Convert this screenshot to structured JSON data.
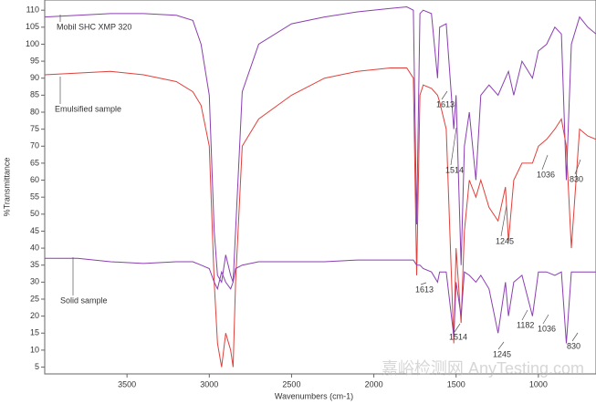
{
  "chart_data": {
    "type": "line",
    "xlabel": "Wavenumbers (cm-1)",
    "ylabel": "%Transmittance",
    "x": [
      4000,
      3800,
      3600,
      3400,
      3200,
      3100,
      3050,
      3000,
      2970,
      2950,
      2925,
      2900,
      2870,
      2855,
      2840,
      2800,
      2700,
      2500,
      2300,
      2100,
      1900,
      1800,
      1760,
      1740,
      1720,
      1700,
      1650,
      1613,
      1600,
      1560,
      1514,
      1500,
      1470,
      1450,
      1420,
      1380,
      1350,
      1300,
      1245,
      1200,
      1182,
      1150,
      1100,
      1036,
      1000,
      950,
      900,
      860,
      830,
      800,
      750,
      700,
      650
    ],
    "series": [
      {
        "name": "Mobil SHC XMP 320",
        "color": "#8a3fb0",
        "values": [
          108,
          108.5,
          109,
          109,
          108.5,
          107,
          100,
          85,
          45,
          32,
          30,
          38,
          32,
          30,
          45,
          86,
          100,
          106,
          108,
          109.5,
          110.5,
          111,
          110,
          47,
          109,
          110,
          109,
          90,
          105,
          106,
          75,
          85,
          35,
          70,
          80,
          60,
          85,
          88,
          85,
          90,
          92,
          85,
          95,
          90,
          98,
          100,
          105,
          103,
          60,
          100,
          108,
          105,
          103
        ]
      },
      {
        "name": "Emulsified sample",
        "color": "#e0403a",
        "values": [
          91,
          91.5,
          92,
          91,
          89,
          86,
          82,
          70,
          30,
          12,
          5,
          15,
          10,
          5,
          30,
          70,
          78,
          85,
          90,
          92,
          93,
          93,
          90,
          32,
          85,
          88,
          87,
          85,
          83,
          75,
          12,
          40,
          18,
          45,
          60,
          55,
          60,
          52,
          48,
          58,
          42,
          60,
          65,
          65,
          70,
          72,
          75,
          78,
          70,
          40,
          75,
          73,
          72
        ]
      },
      {
        "name": "Solid sample",
        "color": "#8a3fb0",
        "values": [
          37,
          37,
          36,
          35.5,
          36,
          36,
          35,
          34,
          30,
          28,
          33,
          30,
          28,
          30,
          34,
          35,
          36,
          36,
          36,
          36.5,
          36.5,
          36.5,
          36.5,
          35,
          35,
          34,
          33,
          30,
          33,
          33,
          14,
          30,
          20,
          33,
          32,
          30,
          32,
          28,
          15,
          30,
          20,
          30,
          32,
          20,
          33,
          33,
          32,
          33,
          12,
          33,
          33,
          33,
          33
        ]
      }
    ],
    "annotations": [
      "1613",
      "1514",
      "1036",
      "830",
      "1245",
      "1613",
      "1514",
      "1245",
      "1182",
      "1036",
      "830"
    ],
    "xlim": [
      4000,
      650
    ],
    "ylim": [
      3,
      113
    ],
    "xticks": [
      3500,
      3000,
      2500,
      2000,
      1500,
      1000
    ],
    "yticks": [
      5,
      10,
      15,
      20,
      25,
      30,
      35,
      40,
      45,
      50,
      55,
      60,
      65,
      70,
      75,
      80,
      85,
      90,
      95,
      100,
      105,
      110
    ],
    "watermark": "嘉峪检测网 AnyTesting.com"
  }
}
